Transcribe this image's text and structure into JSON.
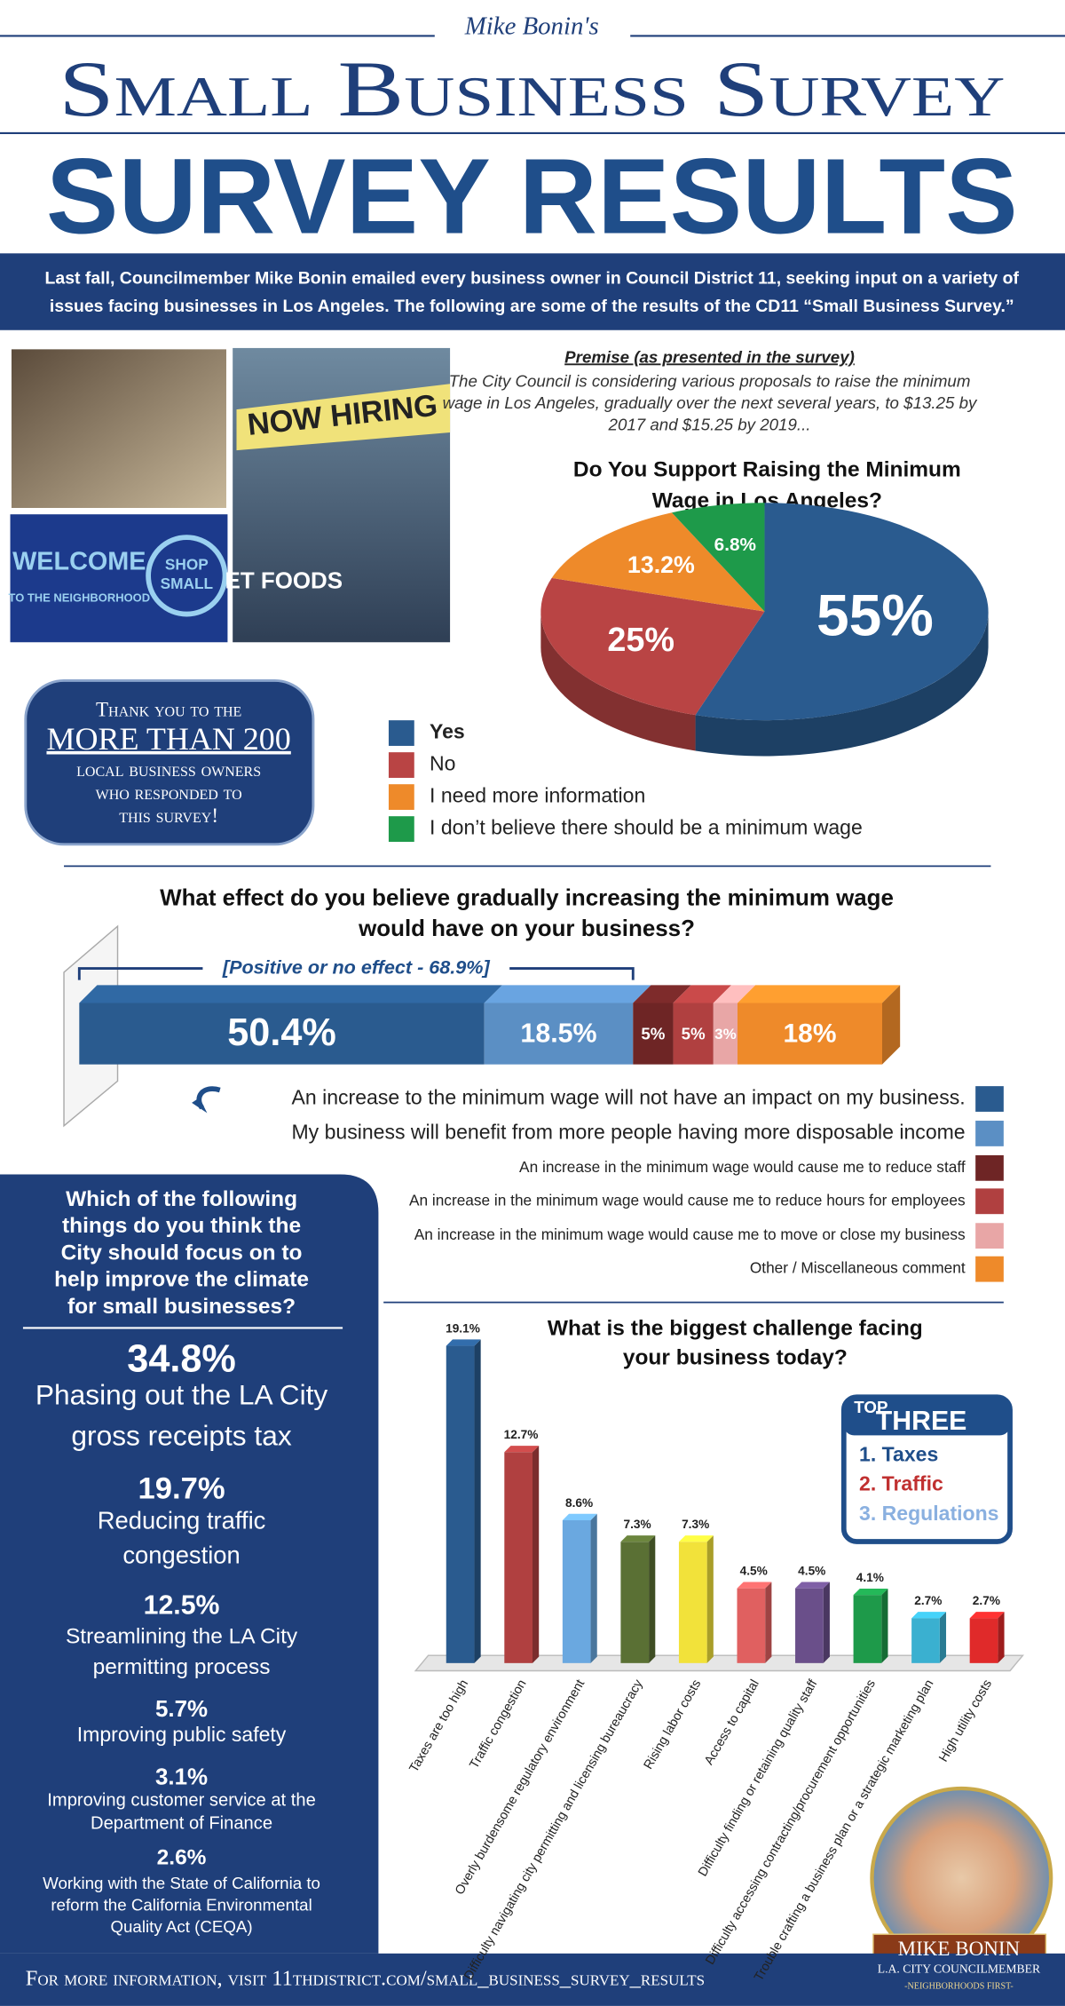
{
  "header": {
    "byline": "Mike Bonin's",
    "title": "Small Business Survey",
    "subtitle": "SURVEY RESULTS"
  },
  "intro": [
    "Last fall, Councilmember Mike Bonin emailed every business owner in Council District 11, seeking input on a variety of",
    "issues facing businesses in Los Angeles. The following are some of the results of the CD11 “Small Business Survey.”"
  ],
  "photos": {
    "sign": "NOW HIRING",
    "welcome": "WELCOME",
    "neighborhood": "TO THE NEIGHBORHOOD",
    "shop_small": [
      "SHOP",
      "SMALL"
    ],
    "storefront": "ET FOODS"
  },
  "premise": {
    "heading": "Premise (as presented in the survey)",
    "lines": [
      "The City Council is considering various proposals to raise the minimum",
      "wage in Los Angeles, gradually over the next several years, to $13.25 by",
      "2017 and $15.25 by 2019..."
    ]
  },
  "thanks": [
    "Thank you to the",
    "MORE THAN 200",
    "local business owners",
    "who responded to",
    "this survey!"
  ],
  "focus": {
    "question": [
      "Which of the following",
      "things do you think the",
      "City should focus on to",
      "help improve the climate",
      "for small businesses?"
    ],
    "items": [
      {
        "percent": "34.8%",
        "lines": [
          "Phasing out the LA City",
          "gross receipts tax"
        ]
      },
      {
        "percent": "19.7%",
        "lines": [
          "Reducing traffic",
          "congestion"
        ]
      },
      {
        "percent": "12.5%",
        "lines": [
          "Streamlining the LA City",
          "permitting process"
        ]
      },
      {
        "percent": "5.7%",
        "lines": [
          "Improving public safety"
        ]
      },
      {
        "percent": "3.1%",
        "lines": [
          "Improving customer service at the",
          "Department of Finance"
        ]
      },
      {
        "percent": "2.6%",
        "lines": [
          "Working with the State of California to",
          "reform the California Environmental",
          "Quality Act (CEQA)"
        ]
      }
    ]
  },
  "chart_data": [
    {
      "type": "pie",
      "title": [
        "Do You Support Raising the Minimum",
        "Wage in Los Angeles?"
      ],
      "categories": [
        "Yes",
        "No",
        "I need more information",
        "I don’t believe there should be a minimum wage"
      ],
      "values": [
        55,
        25,
        13.2,
        6.8
      ],
      "value_labels": [
        "55%",
        "25%",
        "13.2%",
        "6.8%"
      ],
      "colors": [
        "#2a5b8f",
        "#b94444",
        "#ee8a2a",
        "#1e9a4a"
      ]
    },
    {
      "type": "stacked_bar",
      "title": [
        "What effect do you believe gradually increasing the minimum wage",
        "would have on your business?"
      ],
      "annotation": "[Positive or no effect - 68.9%]",
      "series": [
        {
          "name": "An increase to the minimum wage will not have an impact on my business.",
          "color": "#2a5b8f",
          "values": [
            50.4
          ],
          "value_labels": [
            "50.4%"
          ]
        },
        {
          "name": "My business will benefit from more people having more disposable income",
          "color": "#5b8fc4",
          "values": [
            18.5
          ],
          "value_labels": [
            "18.5%"
          ]
        },
        {
          "name": "An increase in the minimum wage would cause me to reduce staff",
          "color": "#6e2525",
          "values": [
            5
          ],
          "value_labels": [
            "5%"
          ]
        },
        {
          "name": "An increase in the minimum wage would cause me to reduce hours for employees",
          "color": "#b04040",
          "values": [
            5
          ],
          "value_labels": [
            "5%"
          ]
        },
        {
          "name": "An increase in the minimum wage would cause me to move or close my business",
          "color": "#e8a6a6",
          "values": [
            3
          ],
          "value_labels": [
            "3%"
          ]
        },
        {
          "name": "Other / Miscellaneous comment",
          "color": "#ee8a2a",
          "values": [
            18
          ],
          "value_labels": [
            "18%"
          ]
        }
      ]
    },
    {
      "type": "bar",
      "title": [
        "What is the biggest challenge facing",
        "your business today?"
      ],
      "categories": [
        "Taxes are too high",
        "Traffic congestion",
        "Overly burdensome regulatory environment",
        "Difficulty navigating city permitting and licensing bureaucracy",
        "Rising labor costs",
        "Access to capital",
        "Difficulty finding or retaining quality staff",
        "Difficulty accessing contracting/procurement opportunities",
        "Trouble crafting a business plan or a strategic marketing plan",
        "High utility costs"
      ],
      "values": [
        19.1,
        12.7,
        8.6,
        7.3,
        7.3,
        4.5,
        4.5,
        4.1,
        2.7,
        2.7
      ],
      "value_labels": [
        "19.1%",
        "12.7%",
        "8.6%",
        "7.3%",
        "7.3%",
        "4.5%",
        "4.5%",
        "4.1%",
        "2.7%",
        "2.7%"
      ],
      "colors": [
        "#2a5b8f",
        "#b04040",
        "#6aa8e0",
        "#5a7034",
        "#f2e23a",
        "#e06060",
        "#6a4f8a",
        "#1e9a4a",
        "#3ab0d0",
        "#e02a2a"
      ],
      "callout": {
        "heading": [
          "TOP",
          "THREE"
        ],
        "items": [
          "1. Taxes",
          "2. Traffic",
          "3. Regulations"
        ]
      }
    }
  ],
  "badge": {
    "name": "MIKE BONIN",
    "role": "L.A. CITY COUNCILMEMBER",
    "motto": "-NEIGHBORHOODS FIRST-"
  },
  "footer": "For more information, visit 11thdistrict.com/small_business_survey_results"
}
